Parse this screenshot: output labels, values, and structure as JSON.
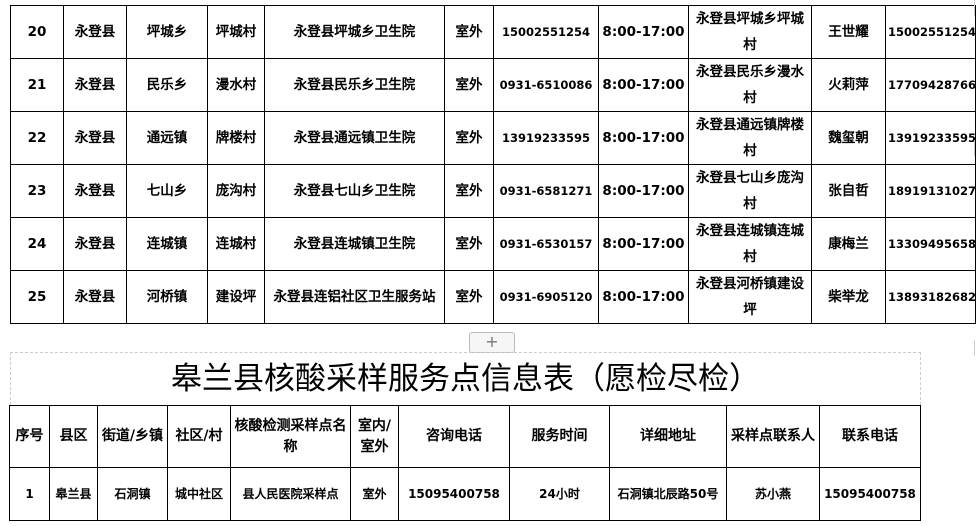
{
  "upper_table": {
    "rows": [
      [
        "20",
        "永登县",
        "坪城乡",
        "坪城村",
        "永登县坪城乡卫生院",
        "室外",
        "15002551254",
        "8:00-17:00",
        "永登县坪城乡坪城村",
        "王世耀",
        "15002551254"
      ],
      [
        "21",
        "永登县",
        "民乐乡",
        "漫水村",
        "永登县民乐乡卫生院",
        "室外",
        "0931-6510086",
        "8:00-17:00",
        "永登县民乐乡漫水村",
        "火莉萍",
        "17709428766"
      ],
      [
        "22",
        "永登县",
        "通远镇",
        "牌楼村",
        "永登县通远镇卫生院",
        "室外",
        "13919233595",
        "8:00-17:00",
        "永登县通远镇牌楼村",
        "魏玺朝",
        "13919233595"
      ],
      [
        "23",
        "永登县",
        "七山乡",
        "庞沟村",
        "永登县七山乡卫生院",
        "室外",
        "0931-6581271",
        "8:00-17:00",
        "永登县七山乡庞沟村",
        "张自哲",
        "18919131027"
      ],
      [
        "24",
        "永登县",
        "连城镇",
        "连城村",
        "永登县连城镇卫生院",
        "室外",
        "0931-6530157",
        "8:00-17:00",
        "永登县连城镇连城村",
        "康梅兰",
        "13309495658"
      ],
      [
        "25",
        "永登县",
        "河桥镇",
        "建设坪",
        "永登县连铝社区卫生服务站",
        "室外",
        "0931-6905120",
        "8:00-17:00",
        "永登县河桥镇建设坪",
        "柴举龙",
        "13893182682"
      ]
    ]
  },
  "add_button": "+",
  "lower_table": {
    "title": "皋兰县核酸采样服务点信息表（愿检尽检）",
    "headers": [
      "序号",
      "县区",
      "街道/乡镇",
      "社区/村",
      "核酸检测采样点名称",
      "室内/室外",
      "咨询电话",
      "服务时间",
      "详细地址",
      "采样点联系人",
      "联系电话"
    ],
    "rows": [
      [
        "1",
        "皋兰县",
        "石洞镇",
        "城中社区",
        "县人民医院采样点",
        "室外",
        "15095400758",
        "24小时",
        "石洞镇北辰路50号",
        "苏小燕",
        "15095400758"
      ]
    ]
  }
}
